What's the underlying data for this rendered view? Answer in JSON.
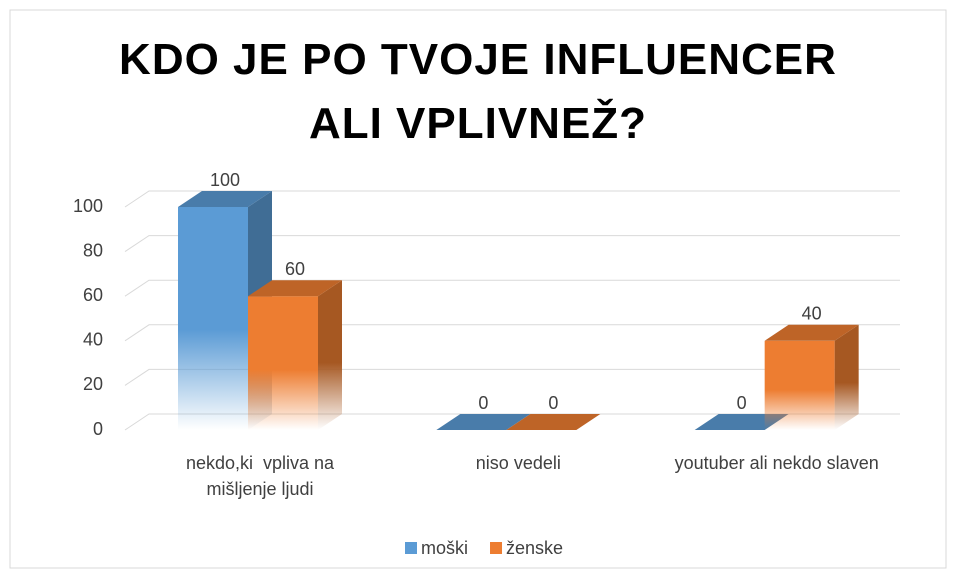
{
  "chart_data": {
    "type": "bar3d",
    "title": "KDO JE PO TVOJE INFLUENCER ALI VPLIVNEŽ?",
    "categories": [
      "nekdo,ki  vpliva na mišljenje ljudi",
      "niso vedeli",
      "youtuber ali nekdo slaven"
    ],
    "series": [
      {
        "name": "moški",
        "color": "#5b9bd5",
        "values": [
          100,
          0,
          0
        ]
      },
      {
        "name": "ženske",
        "color": "#ed7d31",
        "values": [
          60,
          0,
          40
        ]
      }
    ],
    "ylim": [
      0,
      100
    ],
    "yticks": [
      0,
      20,
      40,
      60,
      80,
      100
    ],
    "grid": true,
    "legend": "bottom"
  }
}
